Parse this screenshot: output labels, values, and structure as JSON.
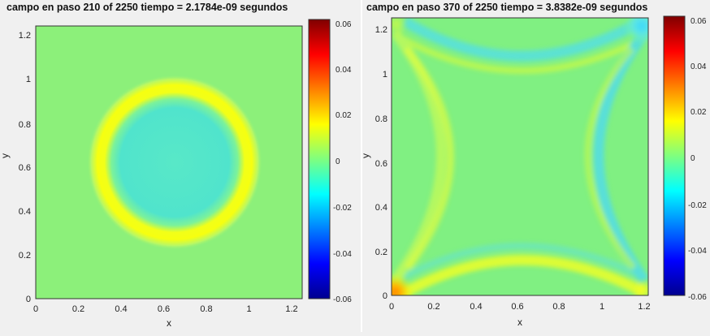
{
  "colors": {
    "page_background": "#f0f0f0",
    "colormap": "jet"
  },
  "chart_data": [
    {
      "type": "heatmap",
      "title": "campo en paso 210 of 2250 tiempo = 2.1784e-09 segundos",
      "xlabel": "x",
      "ylabel": "y",
      "xlim": [
        0,
        1.25
      ],
      "ylim": [
        0,
        1.25
      ],
      "xticks": [
        "0",
        "0.2",
        "0.4",
        "0.6",
        "0.8",
        "1",
        "1.2"
      ],
      "yticks": [
        "0",
        "0.2",
        "0.4",
        "0.6",
        "0.8",
        "1",
        "1.2"
      ],
      "colorbar": {
        "range": [
          -0.06,
          0.06
        ],
        "ticks": [
          "-0.06",
          "-0.04",
          "-0.02",
          "0",
          "0.02",
          "0.04",
          "0.06"
        ]
      },
      "field": {
        "pattern": "circular ring",
        "center": [
          0.62,
          0.62
        ],
        "ring_radius": 0.36,
        "ring_value": 0.02,
        "inner_value": -0.01,
        "background_value": 0.005
      }
    },
    {
      "type": "heatmap",
      "title": "campo en paso 370 of 2250 tiempo = 3.8382e-09 segundos",
      "xlabel": "x",
      "ylabel": "y",
      "xlim": [
        0,
        1.25
      ],
      "ylim": [
        0,
        1.25
      ],
      "xticks": [
        "0",
        "0.2",
        "0.4",
        "0.6",
        "0.8",
        "1",
        "1.2"
      ],
      "yticks": [
        "0",
        "0.2",
        "0.4",
        "0.6",
        "0.8",
        "1",
        "1.2"
      ],
      "colorbar": {
        "range": [
          -0.06,
          0.06
        ],
        "ticks": [
          "-0.06",
          "-0.04",
          "-0.02",
          "0",
          "0.02",
          "0.04",
          "0.06"
        ]
      },
      "field": {
        "pattern": "reflected wavefront arcs from edges",
        "background_value": 0.005,
        "corner_hot_spot": {
          "x": 0.0,
          "y": 0.0,
          "value": 0.045
        },
        "corner_cold_spot": {
          "x": 1.2,
          "y": 1.2,
          "value": -0.015
        }
      }
    }
  ]
}
